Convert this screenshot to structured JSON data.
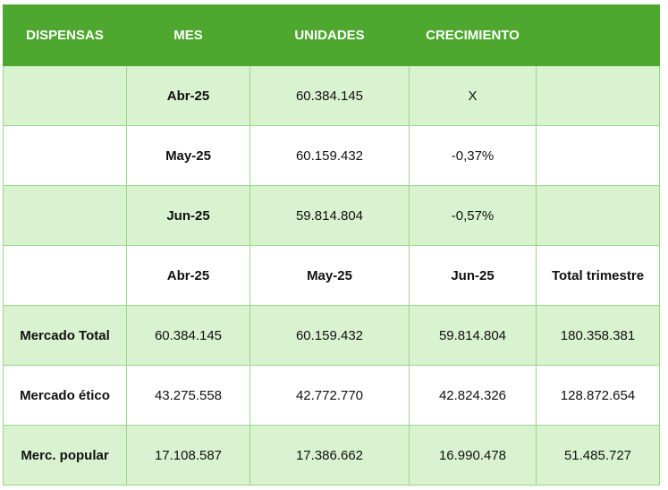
{
  "header": {
    "col1": "DISPENSAS",
    "col2": "MES",
    "col3": "UNIDADES",
    "col4": "CRECIMIENTO",
    "col5": ""
  },
  "monthly": [
    {
      "month": "Abr-25",
      "units": "60.384.145",
      "growth": "X"
    },
    {
      "month": "May-25",
      "units": "60.159.432",
      "growth": "-0,37%"
    },
    {
      "month": "Jun-25",
      "units": "59.814.804",
      "growth": "-0,57%"
    }
  ],
  "summary_header": {
    "c1": "",
    "c2": "Abr-25",
    "c3": "May-25",
    "c4": "Jun-25",
    "c5": "Total trimestre"
  },
  "summary": [
    {
      "label": "Mercado Total",
      "abr": "60.384.145",
      "may": "60.159.432",
      "jun": "59.814.804",
      "total": "180.358.381"
    },
    {
      "label": "Mercado ético",
      "abr": "43.275.558",
      "may": "42.772.770",
      "jun": "42.824.326",
      "total": "128.872.654"
    },
    {
      "label": "Merc. popular",
      "abr": "17.108.587",
      "may": "17.386.662",
      "jun": "16.990.478",
      "total": "51.485.727"
    }
  ],
  "colors": {
    "header_bg": "#4ea72e",
    "band_light": "#d9f2d0",
    "border": "#9bd68a"
  }
}
